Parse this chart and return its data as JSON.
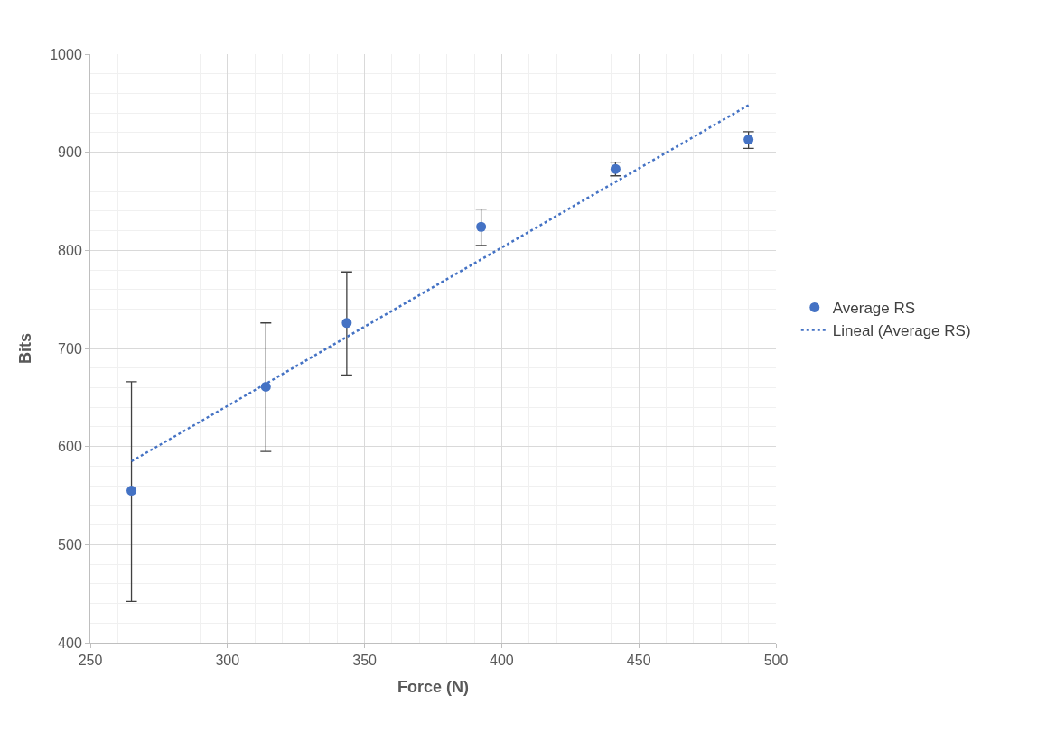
{
  "chart_data": {
    "type": "scatter",
    "xlabel": "Force (N)",
    "ylabel": "Bits",
    "xlim": [
      250,
      500
    ],
    "xticks": [
      250,
      300,
      350,
      400,
      450,
      500
    ],
    "ylim": [
      400,
      1000
    ],
    "yticks": [
      400,
      500,
      600,
      700,
      800,
      900,
      1000
    ],
    "grid": true,
    "legend": "right",
    "series": [
      {
        "name": "Average RS",
        "marker": "circle",
        "color": "#4472c4",
        "x": [
          265,
          314,
          343.5,
          392.5,
          441.5,
          490
        ],
        "values": [
          555,
          661,
          726,
          824,
          883,
          913
        ],
        "errors": [
          [
            442,
            666
          ],
          [
            595,
            726
          ],
          [
            673,
            778
          ],
          [
            805,
            842
          ],
          [
            876,
            890
          ],
          [
            904,
            921
          ]
        ]
      },
      {
        "name": "Lineal (Average RS)",
        "type": "line",
        "color": "#4472c4",
        "line_style": "dotted",
        "x": [
          265,
          490
        ],
        "values": [
          585,
          948
        ]
      }
    ]
  }
}
